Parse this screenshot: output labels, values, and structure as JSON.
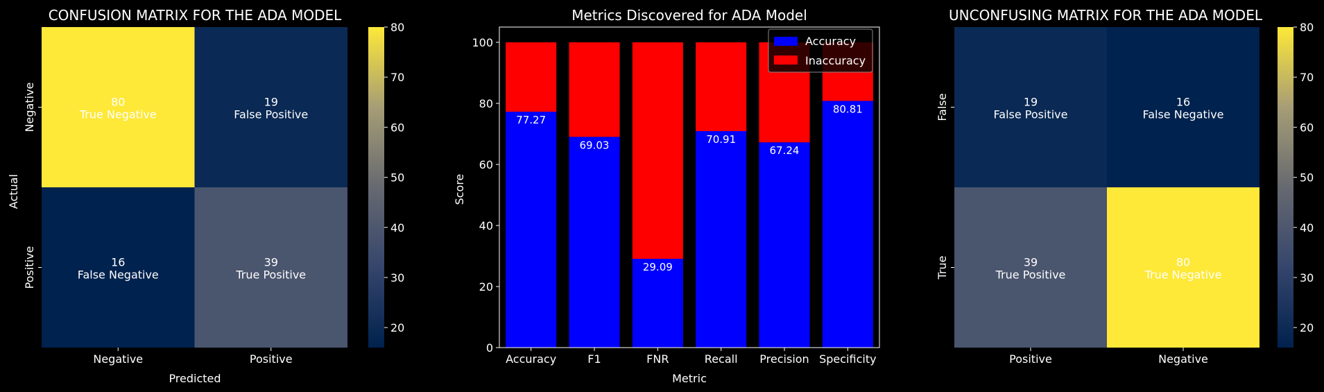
{
  "figure": {
    "background": "#000000"
  },
  "chart_data": [
    {
      "type": "heatmap",
      "title": "CONFUSION MATRIX FOR THE ADA MODEL",
      "xlabel": "Predicted",
      "ylabel": "Actual",
      "x_ticks": [
        "Negative",
        "Positive"
      ],
      "y_ticks": [
        "Negative",
        "Positive"
      ],
      "cells": [
        [
          {
            "value": 80,
            "label": "True Negative"
          },
          {
            "value": 19,
            "label": "False Positive"
          }
        ],
        [
          {
            "value": 16,
            "label": "False Negative"
          },
          {
            "value": 39,
            "label": "True Positive"
          }
        ]
      ],
      "colormap": "cividis",
      "colorbar": {
        "min": 16,
        "max": 80,
        "ticks": [
          20,
          30,
          40,
          50,
          60,
          70,
          80
        ]
      }
    },
    {
      "type": "bar",
      "stacked": true,
      "title": "Metrics Discovered for ADA Model",
      "xlabel": "Metric",
      "ylabel": "Score",
      "categories": [
        "Accuracy",
        "F1",
        "FNR",
        "Recall",
        "Precision",
        "Specificity"
      ],
      "series": [
        {
          "name": "Accuracy",
          "color": "#0000ff",
          "values": [
            77.27,
            69.03,
            29.09,
            70.91,
            67.24,
            80.81
          ]
        },
        {
          "name": "Inaccuracy",
          "color": "#ff0000",
          "values": [
            22.73,
            30.97,
            70.91,
            29.09,
            32.76,
            19.19
          ]
        }
      ],
      "data_labels": [
        "77.27",
        "69.03",
        "29.09",
        "70.91",
        "67.24",
        "80.81"
      ],
      "ylim": [
        0,
        105
      ],
      "yticks": [
        0,
        20,
        40,
        60,
        80,
        100
      ],
      "legend": "top-right"
    },
    {
      "type": "heatmap",
      "title": "UNCONFUSING MATRIX FOR THE ADA MODEL",
      "xlabel": "",
      "ylabel": "",
      "x_ticks": [
        "Positive",
        "Negative"
      ],
      "y_ticks": [
        "False",
        "True"
      ],
      "cells": [
        [
          {
            "value": 19,
            "label": "False Positive"
          },
          {
            "value": 16,
            "label": "False Negative"
          }
        ],
        [
          {
            "value": 39,
            "label": "True Positive"
          },
          {
            "value": 80,
            "label": "True Negative"
          }
        ]
      ],
      "colormap": "cividis",
      "colorbar": {
        "min": 16,
        "max": 80,
        "ticks": [
          20,
          30,
          40,
          50,
          60,
          70,
          80
        ]
      }
    }
  ]
}
